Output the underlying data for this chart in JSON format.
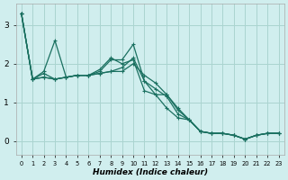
{
  "xlabel": "Humidex (Indice chaleur)",
  "bg_color": "#d0eeee",
  "grid_color": "#aad4d0",
  "line_color": "#1a7060",
  "xlim": [
    -0.5,
    23.5
  ],
  "ylim": [
    -0.35,
    3.55
  ],
  "xticks": [
    0,
    1,
    2,
    3,
    4,
    5,
    6,
    7,
    8,
    9,
    10,
    11,
    12,
    13,
    14,
    15,
    16,
    17,
    18,
    19,
    20,
    21,
    22,
    23
  ],
  "yticks": [
    0,
    1,
    2,
    3
  ],
  "series": [
    {
      "x": [
        0,
        1,
        2,
        3,
        4,
        5,
        6,
        7,
        8,
        9,
        10,
        11,
        12,
        13,
        14,
        15,
        16,
        17,
        18,
        19,
        20,
        21,
        22,
        23
      ],
      "y": [
        3.3,
        1.6,
        1.8,
        2.6,
        1.65,
        1.7,
        1.7,
        1.8,
        2.1,
        2.1,
        2.5,
        1.55,
        1.2,
        1.2,
        0.85,
        0.55,
        0.25,
        0.2,
        0.2,
        0.15,
        0.05,
        0.15,
        0.2,
        0.2
      ]
    },
    {
      "x": [
        0,
        1,
        2,
        3,
        4,
        5,
        6,
        7,
        8,
        9,
        10,
        11,
        12,
        13,
        14,
        15,
        16,
        17,
        18,
        19,
        20,
        21,
        22,
        23
      ],
      "y": [
        3.3,
        1.6,
        1.75,
        1.6,
        1.65,
        1.7,
        1.7,
        1.85,
        2.15,
        2.0,
        2.1,
        1.3,
        1.2,
        0.85,
        0.6,
        0.55,
        0.25,
        0.2,
        0.2,
        0.15,
        0.05,
        0.15,
        0.2,
        0.2
      ]
    },
    {
      "x": [
        0,
        1,
        2,
        3,
        4,
        5,
        6,
        7,
        8,
        9,
        10,
        11,
        12,
        13,
        14,
        15,
        16,
        17,
        18,
        19,
        20,
        21,
        22,
        23
      ],
      "y": [
        3.3,
        1.6,
        1.65,
        1.6,
        1.65,
        1.7,
        1.7,
        1.75,
        1.8,
        1.9,
        2.15,
        1.55,
        1.35,
        1.15,
        0.7,
        0.55,
        0.25,
        0.2,
        0.2,
        0.15,
        0.05,
        0.15,
        0.2,
        0.2
      ]
    },
    {
      "x": [
        0,
        1,
        2,
        3,
        4,
        5,
        6,
        7,
        8,
        9,
        10,
        11,
        12,
        13,
        14,
        15,
        16,
        17,
        18,
        19,
        20,
        21,
        22,
        23
      ],
      "y": [
        3.3,
        1.6,
        1.65,
        1.6,
        1.65,
        1.7,
        1.7,
        1.75,
        1.8,
        1.8,
        2.0,
        1.7,
        1.5,
        1.2,
        0.8,
        0.55,
        0.25,
        0.2,
        0.2,
        0.15,
        0.05,
        0.15,
        0.2,
        0.2
      ]
    }
  ]
}
